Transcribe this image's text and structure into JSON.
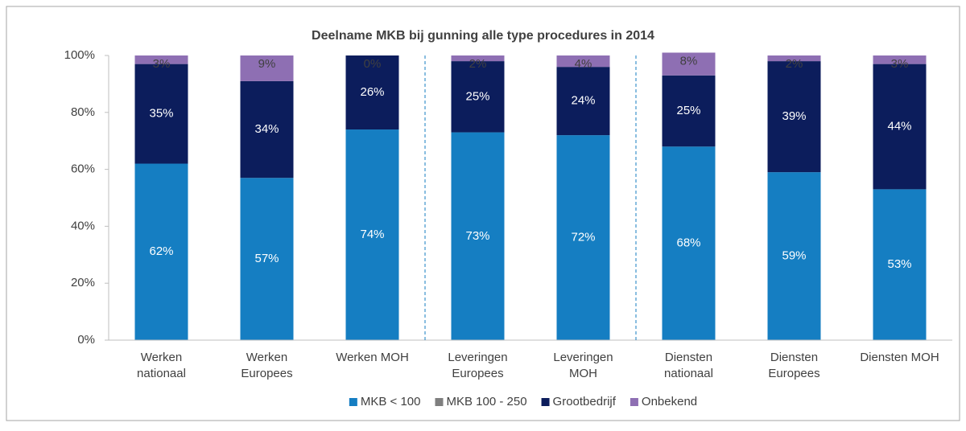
{
  "chart_data": {
    "type": "stacked_bar",
    "title": "Deelname MKB bij gunning alle type procedures in 2014",
    "categories": [
      "Werken nationaal",
      "Werken Europees",
      "Werken MOH",
      "Leveringen Europees",
      "Leveringen MOH",
      "Diensten nationaal",
      "Diensten Europees",
      "Diensten MOH"
    ],
    "series": [
      {
        "name": "MKB < 100",
        "color": "#157ec2",
        "values": [
          62,
          57,
          74,
          73,
          72,
          68,
          59,
          53
        ],
        "value_labels": [
          "62%",
          "57%",
          "74%",
          "73%",
          "72%",
          "68%",
          "59%",
          "53%"
        ]
      },
      {
        "name": "MKB 100 - 250",
        "color": "#7f7f7f",
        "values": [
          0,
          0,
          0,
          0,
          0,
          0,
          0,
          0
        ]
      },
      {
        "name": "Grootbedrijf",
        "color": "#0c1d5c",
        "values": [
          35,
          34,
          26,
          25,
          24,
          25,
          39,
          44
        ],
        "value_labels": [
          "35%",
          "34%",
          "26%",
          "25%",
          "24%",
          "25%",
          "39%",
          "44%"
        ]
      },
      {
        "name": "Onbekend",
        "color": "#8e6fb3",
        "values": [
          3,
          9,
          0,
          2,
          4,
          8,
          2,
          3
        ],
        "value_labels": [
          "3%",
          "9%",
          "0%",
          "2%",
          "4%",
          "8%",
          "2%",
          "3%"
        ]
      }
    ],
    "ylim": [
      0,
      100
    ],
    "yticks": [
      {
        "value": 0,
        "label": "0%"
      },
      {
        "value": 20,
        "label": "20%"
      },
      {
        "value": 40,
        "label": "40%"
      },
      {
        "value": 60,
        "label": "60%"
      },
      {
        "value": 80,
        "label": "80%"
      },
      {
        "value": 100,
        "label": "100%"
      }
    ],
    "legend": "bottom"
  }
}
